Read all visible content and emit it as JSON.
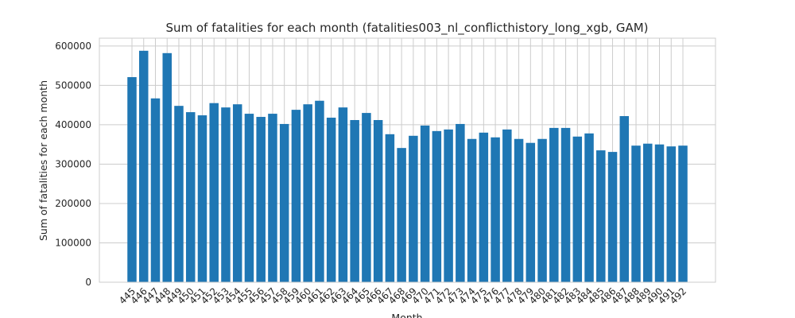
{
  "chart_data": {
    "type": "bar",
    "title": "Sum of fatalities for each month (fatalities003_nl_conflicthistory_long_xgb, GAM)",
    "x_label": "Month",
    "y_label": "Sum of fatalities for each month",
    "categories": [
      "445",
      "446",
      "447",
      "448",
      "449",
      "450",
      "451",
      "452",
      "453",
      "454",
      "455",
      "456",
      "457",
      "458",
      "459",
      "460",
      "461",
      "462",
      "463",
      "464",
      "465",
      "466",
      "467",
      "468",
      "469",
      "470",
      "471",
      "472",
      "473",
      "474",
      "475",
      "476",
      "477",
      "478",
      "479",
      "480",
      "481",
      "482",
      "483",
      "484",
      "485",
      "486",
      "487",
      "488",
      "489",
      "490",
      "491",
      "492"
    ],
    "values": [
      521000,
      588000,
      467000,
      582000,
      448000,
      432000,
      424000,
      455000,
      444000,
      452000,
      428000,
      420000,
      428000,
      402000,
      438000,
      452000,
      461000,
      418000,
      444000,
      412000,
      430000,
      412000,
      376000,
      341000,
      372000,
      398000,
      384000,
      388000,
      402000,
      364000,
      380000,
      368000,
      388000,
      364000,
      354000,
      364000,
      392000,
      392000,
      370000,
      378000,
      335000,
      331000,
      422000,
      347000,
      352000,
      350000,
      345000,
      347000
    ],
    "color": "#1f77b4",
    "ylim": [
      0,
      620000
    ],
    "yticks": [
      0,
      100000,
      200000,
      300000,
      400000,
      500000,
      600000
    ],
    "grid": true
  }
}
